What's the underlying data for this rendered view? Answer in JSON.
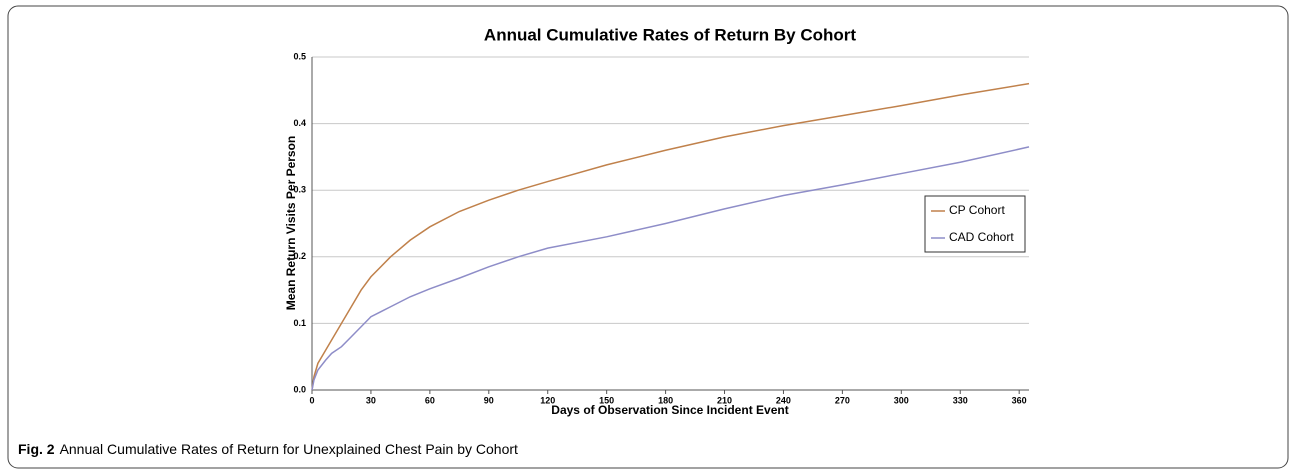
{
  "chart_data": {
    "type": "line",
    "title": "Annual Cumulative Rates of Return By Cohort",
    "x_label": "Days of Observation Since Incident Event",
    "y_label": "Mean Return Visits Per Person",
    "x": [
      0,
      1,
      3,
      7,
      10,
      15,
      20,
      25,
      30,
      40,
      50,
      60,
      75,
      90,
      105,
      120,
      150,
      180,
      210,
      240,
      270,
      300,
      330,
      365
    ],
    "series": [
      {
        "name": "CP Cohort",
        "color": "#c0814b",
        "values": [
          0,
          0.02,
          0.04,
          0.06,
          0.075,
          0.1,
          0.125,
          0.15,
          0.17,
          0.2,
          0.225,
          0.245,
          0.268,
          0.285,
          0.3,
          0.313,
          0.338,
          0.36,
          0.38,
          0.397,
          0.412,
          0.427,
          0.443,
          0.46
        ]
      },
      {
        "name": "CAD Cohort",
        "color": "#8e8dc8",
        "values": [
          0,
          0.015,
          0.03,
          0.045,
          0.055,
          0.065,
          0.08,
          0.095,
          0.11,
          0.125,
          0.14,
          0.152,
          0.168,
          0.185,
          0.2,
          0.213,
          0.23,
          0.25,
          0.272,
          0.292,
          0.308,
          0.325,
          0.342,
          0.365
        ]
      }
    ],
    "xlim": [
      0,
      365
    ],
    "xticks": [
      0,
      30,
      60,
      90,
      120,
      150,
      180,
      210,
      240,
      270,
      300,
      330,
      360
    ],
    "ylim": [
      0,
      0.5
    ],
    "yticks": [
      {
        "value": 0,
        "label": "0.0"
      },
      0.1,
      0.2,
      0.3,
      0.4,
      0.5
    ],
    "grid": true,
    "legend": "right"
  },
  "caption": {
    "label": "Fig. 2",
    "text": "Annual Cumulative Rates of Return for Unexplained Chest Pain by Cohort"
  }
}
